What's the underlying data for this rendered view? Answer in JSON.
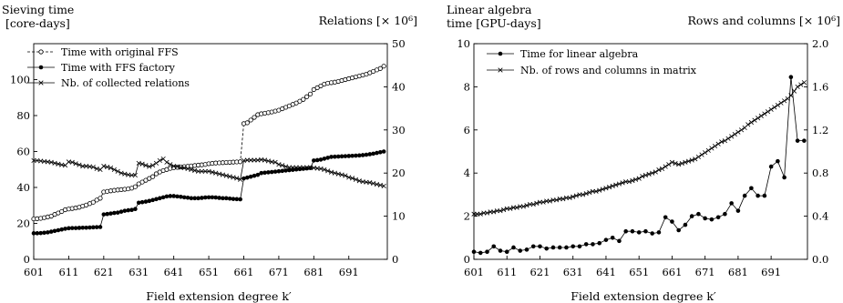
{
  "chart_data": [
    {
      "type": "line",
      "title_lines": [
        "Sieving time",
        "[core-days]"
      ],
      "right_title": "Relations [× 10⁶]",
      "xlabel": "Field extension degree k′",
      "x_ticks": [
        601,
        611,
        621,
        631,
        641,
        651,
        661,
        671,
        681,
        691
      ],
      "xlim": [
        601,
        702
      ],
      "ylim_left": [
        0,
        120
      ],
      "y_ticks_left": [
        0,
        20,
        40,
        60,
        80,
        100
      ],
      "ylim_right": [
        0,
        50
      ],
      "y_ticks_right": [
        0,
        10,
        20,
        30,
        40,
        50
      ],
      "legend_position": "top-left",
      "x": [
        601,
        602,
        603,
        604,
        605,
        606,
        607,
        608,
        609,
        610,
        611,
        612,
        613,
        614,
        615,
        616,
        617,
        618,
        619,
        620,
        621,
        622,
        623,
        624,
        625,
        626,
        627,
        628,
        629,
        630,
        631,
        632,
        633,
        634,
        635,
        636,
        637,
        638,
        639,
        640,
        641,
        642,
        643,
        644,
        645,
        646,
        647,
        648,
        649,
        650,
        651,
        652,
        653,
        654,
        655,
        656,
        657,
        658,
        659,
        660,
        661,
        662,
        663,
        664,
        665,
        666,
        667,
        668,
        669,
        670,
        671,
        672,
        673,
        674,
        675,
        676,
        677,
        678,
        679,
        680,
        681,
        682,
        683,
        684,
        685,
        686,
        687,
        688,
        689,
        690,
        691,
        692,
        693,
        694,
        695,
        696,
        697,
        698,
        699,
        700,
        701
      ],
      "series": [
        {
          "name": "Time with original FFS",
          "axis": "left",
          "style": "dashed-open-circle",
          "values": [
            22.5,
            22.6,
            22.8,
            23.2,
            23.6,
            24,
            25,
            25.8,
            26.6,
            27.6,
            28,
            28.3,
            28.6,
            29,
            29.6,
            30.2,
            31,
            31.8,
            33,
            34,
            37.5,
            37.8,
            38.1,
            38.4,
            38.6,
            38.8,
            39,
            39.2,
            39.6,
            40.4,
            42,
            43,
            44,
            45,
            46,
            47.6,
            48.6,
            49.4,
            50,
            50.6,
            51,
            51.2,
            51.4,
            51.6,
            51.8,
            52,
            52.2,
            52.4,
            52.6,
            52.8,
            53.2,
            53.4,
            53.6,
            53.7,
            53.8,
            53.9,
            54,
            54.1,
            54.2,
            54.3,
            75.5,
            76,
            77.5,
            79,
            80.5,
            81,
            81.3,
            81.6,
            82,
            82.5,
            83,
            83.8,
            84.6,
            85.4,
            86.2,
            87,
            88,
            89,
            90.5,
            92,
            94.5,
            95.5,
            96.5,
            97.5,
            98,
            98.3,
            98.6,
            99,
            99.5,
            100,
            100.5,
            101,
            101.5,
            102,
            102.5,
            103,
            103.8,
            104.6,
            105.4,
            106.2,
            107.5
          ]
        },
        {
          "name": "Time with FFS factory",
          "axis": "left",
          "style": "solid-filled-circle",
          "values": [
            14.5,
            14.5,
            14.6,
            14.8,
            15,
            15.4,
            15.8,
            16.2,
            16.6,
            17,
            17.3,
            17.4,
            17.4,
            17.5,
            17.6,
            17.6,
            17.7,
            17.8,
            17.9,
            18,
            25,
            25.2,
            25.5,
            25.8,
            26,
            26.5,
            27,
            27.3,
            27.5,
            28,
            31.5,
            31.8,
            32.1,
            32.5,
            33,
            33.5,
            34,
            34.5,
            35,
            35.2,
            35.2,
            35,
            34.8,
            34.5,
            34.3,
            34,
            34,
            34,
            34.2,
            34.4,
            34.5,
            34.5,
            34.4,
            34.2,
            34,
            34,
            33.8,
            33.6,
            33.5,
            33.4,
            45,
            45.5,
            46,
            46.5,
            47,
            48,
            48.2,
            48.4,
            48.6,
            48.8,
            49,
            49.2,
            49.4,
            49.6,
            49.8,
            50,
            50.2,
            50.4,
            50.6,
            50.8,
            55,
            55.2,
            55.5,
            56,
            56.5,
            57,
            57.1,
            57.2,
            57.3,
            57.4,
            57.5,
            57.6,
            57.7,
            57.8,
            58,
            58.2,
            58.5,
            58.8,
            59.2,
            59.6,
            60
          ]
        },
        {
          "name": "Nb. of collected relations",
          "axis": "right",
          "style": "solid-cross",
          "values": [
            22.9,
            22.9,
            22.8,
            22.7,
            22.6,
            22.5,
            22.3,
            22.1,
            21.9,
            21.8,
            22.6,
            22.5,
            22.2,
            21.9,
            21.6,
            21.6,
            21.5,
            21.4,
            21.0,
            20.8,
            21.6,
            21.4,
            21.2,
            20.8,
            20.4,
            20.0,
            19.8,
            19.6,
            19.5,
            19.5,
            22.3,
            22.1,
            21.8,
            21.5,
            21.8,
            22.3,
            22.9,
            23.3,
            22.5,
            22.0,
            21.6,
            21.5,
            21.3,
            21.2,
            21.0,
            20.8,
            20.6,
            20.4,
            20.4,
            20.4,
            20.4,
            20.2,
            20.0,
            19.8,
            19.6,
            19.4,
            19.2,
            19.0,
            18.8,
            18.5,
            22.9,
            23.0,
            23.0,
            23.0,
            23.0,
            23.1,
            23.0,
            22.8,
            22.6,
            22.5,
            22.0,
            21.8,
            21.5,
            21.3,
            21.3,
            21.3,
            21.3,
            21.3,
            21.3,
            21.3,
            21.2,
            21.1,
            21.0,
            20.8,
            20.5,
            20.2,
            20.0,
            19.8,
            19.6,
            19.4,
            19.0,
            18.8,
            18.5,
            18.2,
            18.0,
            17.9,
            17.8,
            17.6,
            17.4,
            17.2,
            17.0
          ]
        }
      ]
    },
    {
      "type": "line",
      "title_lines": [
        "Linear algebra",
        "time [GPU-days]"
      ],
      "right_title": "Rows and columns [× 10⁶]",
      "xlabel": "Field extension degree k′",
      "x_ticks": [
        601,
        611,
        621,
        631,
        641,
        651,
        661,
        671,
        681,
        691
      ],
      "xlim": [
        601,
        702
      ],
      "ylim_left": [
        0,
        10
      ],
      "y_ticks_left": [
        0,
        2,
        4,
        6,
        8,
        10
      ],
      "ylim_right": [
        0,
        2.0
      ],
      "y_ticks_right": [
        "0.0",
        "0.4",
        "0.8",
        "1.2",
        "1.6",
        "2.0"
      ],
      "legend_position": "top-left",
      "series": [
        {
          "name": "Time for linear algebra",
          "axis": "left",
          "style": "solid-filled-circle",
          "x": [
            601,
            603,
            605,
            607,
            609,
            611,
            613,
            615,
            617,
            619,
            621,
            623,
            625,
            627,
            629,
            631,
            633,
            635,
            637,
            639,
            641,
            643,
            645,
            647,
            649,
            651,
            653,
            655,
            657,
            659,
            661,
            663,
            665,
            667,
            669,
            671,
            673,
            675,
            677,
            679,
            681,
            683,
            685,
            687,
            689,
            691,
            693,
            695,
            697,
            699,
            701
          ],
          "values": [
            0.35,
            0.3,
            0.35,
            0.6,
            0.4,
            0.35,
            0.55,
            0.4,
            0.45,
            0.6,
            0.6,
            0.5,
            0.55,
            0.55,
            0.55,
            0.6,
            0.6,
            0.7,
            0.7,
            0.75,
            0.9,
            1.0,
            0.85,
            1.3,
            1.3,
            1.25,
            1.3,
            1.2,
            1.25,
            1.95,
            1.75,
            1.35,
            1.6,
            2.0,
            2.1,
            1.9,
            1.85,
            1.95,
            2.1,
            2.6,
            2.25,
            2.95,
            3.3,
            2.95,
            2.95,
            4.3,
            4.55,
            3.8,
            8.45,
            5.5,
            5.5
          ]
        },
        {
          "name": "Nb. of rows and columns in matrix",
          "axis": "right",
          "style": "solid-cross",
          "x": [
            601,
            602,
            603,
            604,
            605,
            606,
            607,
            608,
            609,
            610,
            611,
            612,
            613,
            614,
            615,
            616,
            617,
            618,
            619,
            620,
            621,
            622,
            623,
            624,
            625,
            626,
            627,
            628,
            629,
            630,
            631,
            632,
            633,
            634,
            635,
            636,
            637,
            638,
            639,
            640,
            641,
            642,
            643,
            644,
            645,
            646,
            647,
            648,
            649,
            650,
            651,
            652,
            653,
            654,
            655,
            656,
            657,
            658,
            659,
            660,
            661,
            662,
            663,
            664,
            665,
            666,
            667,
            668,
            669,
            670,
            671,
            672,
            673,
            674,
            675,
            676,
            677,
            678,
            679,
            680,
            681,
            682,
            683,
            684,
            685,
            686,
            687,
            688,
            689,
            690,
            691,
            692,
            693,
            694,
            695,
            696,
            697,
            698,
            699,
            700,
            701
          ],
          "values": [
            0.42,
            0.42,
            0.42,
            0.43,
            0.43,
            0.44,
            0.44,
            0.45,
            0.45,
            0.46,
            0.47,
            0.47,
            0.48,
            0.48,
            0.49,
            0.49,
            0.5,
            0.51,
            0.51,
            0.52,
            0.53,
            0.53,
            0.54,
            0.54,
            0.55,
            0.55,
            0.56,
            0.56,
            0.57,
            0.57,
            0.58,
            0.59,
            0.6,
            0.6,
            0.61,
            0.62,
            0.63,
            0.63,
            0.64,
            0.65,
            0.66,
            0.67,
            0.68,
            0.69,
            0.7,
            0.71,
            0.72,
            0.72,
            0.73,
            0.74,
            0.75,
            0.77,
            0.78,
            0.79,
            0.8,
            0.81,
            0.83,
            0.84,
            0.86,
            0.88,
            0.9,
            0.89,
            0.88,
            0.89,
            0.9,
            0.91,
            0.92,
            0.93,
            0.95,
            0.97,
            0.99,
            1.01,
            1.03,
            1.05,
            1.07,
            1.09,
            1.1,
            1.12,
            1.14,
            1.16,
            1.18,
            1.2,
            1.22,
            1.25,
            1.27,
            1.29,
            1.31,
            1.33,
            1.35,
            1.37,
            1.39,
            1.41,
            1.43,
            1.45,
            1.47,
            1.49,
            1.52,
            1.56,
            1.6,
            1.62,
            1.64
          ]
        }
      ]
    }
  ]
}
